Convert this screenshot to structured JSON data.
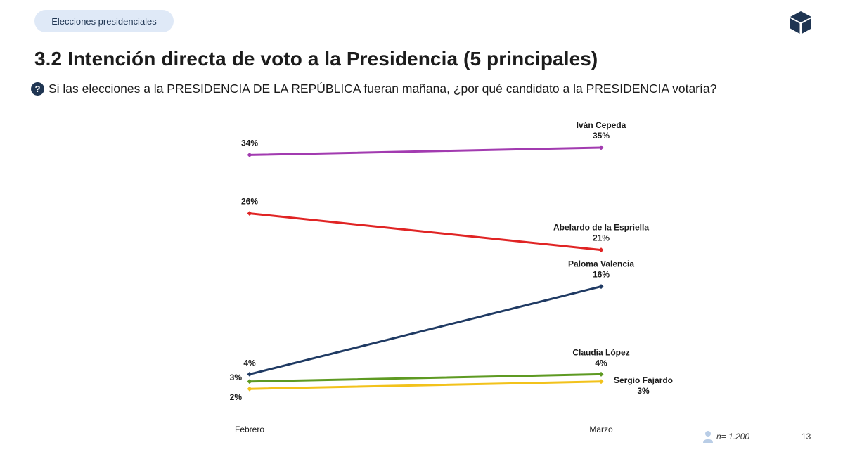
{
  "header": {
    "section_label": "Elecciones presidenciales",
    "logo_icon": "cube-logo-icon"
  },
  "title": "3.2 Intención directa de voto a la Presidencia (5 principales)",
  "question": {
    "icon": "question-circle-icon",
    "text": "Si las elecciones a la PRESIDENCIA DE LA REPÚBLICA fueran mañana, ¿por qué candidato a la PRESIDENCIA votaría?"
  },
  "chart_data": {
    "type": "line",
    "categories": [
      "Febrero",
      "Marzo"
    ],
    "series": [
      {
        "name": "Iván Cepeda",
        "values": [
          34,
          35
        ],
        "color": "#a23bb0",
        "labels": [
          "34%",
          "35%"
        ]
      },
      {
        "name": "Abelardo de la Espriella",
        "values": [
          26,
          21
        ],
        "color": "#e02424",
        "labels": [
          "26%",
          "21%"
        ]
      },
      {
        "name": "Paloma Valencia",
        "values": [
          4,
          16
        ],
        "color": "#1f3a63",
        "labels": [
          "4%",
          "16%"
        ]
      },
      {
        "name": "Claudia López",
        "values": [
          3,
          4
        ],
        "color": "#5e9a22",
        "labels": [
          "3%",
          "4%"
        ]
      },
      {
        "name": "Sergio Fajardo",
        "values": [
          2,
          3
        ],
        "color": "#f2c21b",
        "labels": [
          "2%",
          "3%"
        ]
      }
    ],
    "grid": false,
    "legend": "end-labels"
  },
  "footer": {
    "sample": "n= 1.200",
    "sample_icon": "person-icon",
    "page_number": "13"
  }
}
